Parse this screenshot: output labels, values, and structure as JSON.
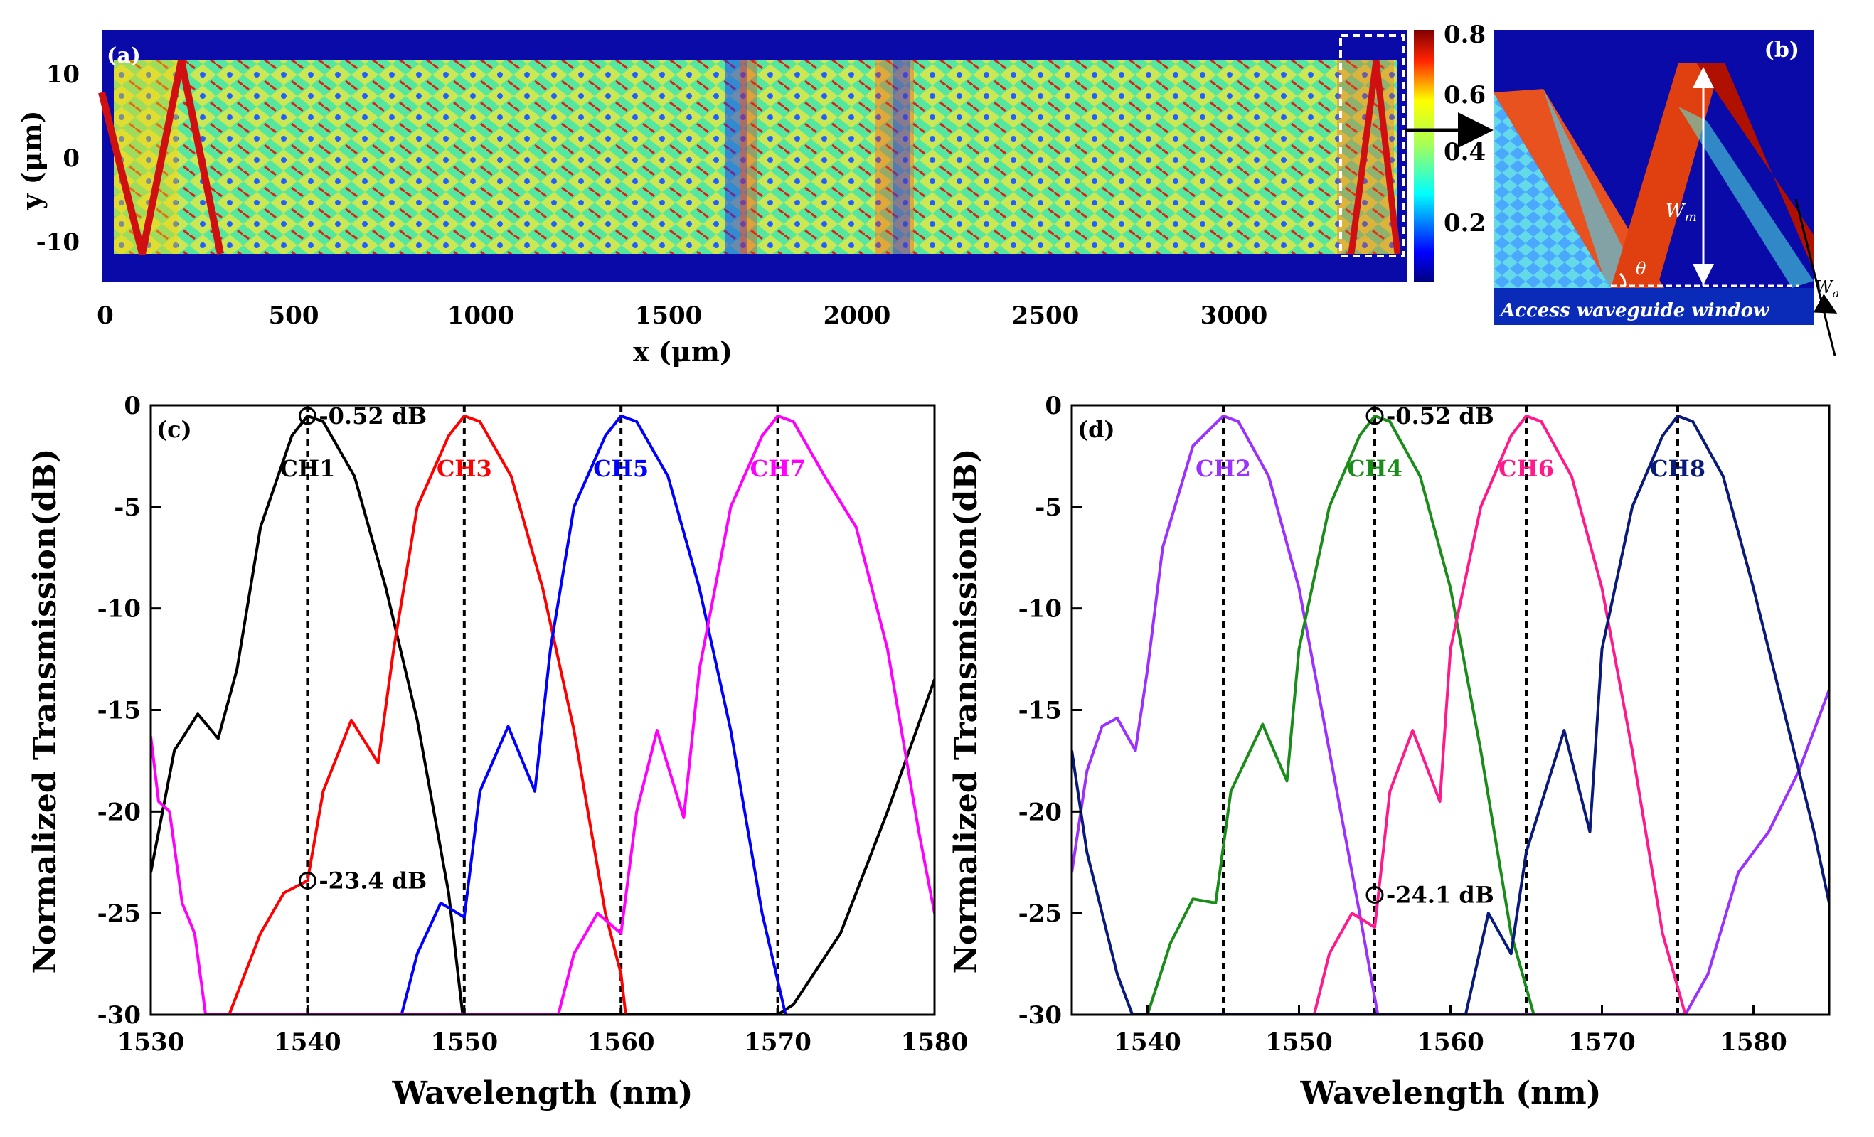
{
  "panel_a": {
    "label": "(a)",
    "xlabel": "x (μm)",
    "ylabel": "y (μm)",
    "xticks": [
      "0",
      "500",
      "1000",
      "1500",
      "2000",
      "2500",
      "3000"
    ],
    "yticks": [
      "10",
      "0",
      "-10"
    ],
    "colorbar_ticks": [
      "0.8",
      "0.6",
      "0.4",
      "0.2"
    ]
  },
  "panel_b": {
    "label": "(b)",
    "wm_label": "W",
    "wm_sub": "m",
    "wa_label": "W",
    "wa_sub": "a",
    "theta_label": "θ",
    "window_label": "Access waveguide window"
  },
  "colors": {
    "ch1": "#000000",
    "ch3": "#ff0000",
    "ch5": "#0000ff",
    "ch7": "#ff00ff",
    "ch2": "#9b30ff",
    "ch4": "#1a8c1a",
    "ch6": "#ff1a8c",
    "ch8": "#0a1a7a"
  },
  "chart_data": [
    {
      "type": "line",
      "panel": "(c)",
      "xlabel": "Wavelength (nm)",
      "ylabel": "Normalized Transmission(dB)",
      "xlim": [
        1530,
        1580
      ],
      "ylim": [
        -30,
        0
      ],
      "xticks": [
        "1530",
        "1540",
        "1550",
        "1560",
        "1570",
        "1580"
      ],
      "yticks": [
        "0",
        "-5",
        "-10",
        "-15",
        "-20",
        "-25",
        "-30"
      ],
      "series": [
        {
          "name": "CH1",
          "color": "#000000",
          "center": 1540,
          "x": [
            1530,
            1531.5,
            1533,
            1534.3,
            1535.5,
            1537,
            1539,
            1540,
            1541,
            1543,
            1545,
            1547,
            1549,
            1549.9,
            1558,
            1562,
            1566,
            1568,
            1570,
            1571,
            1574,
            1577,
            1580
          ],
          "y": [
            -23,
            -17,
            -15.2,
            -16.4,
            -13,
            -6,
            -1.5,
            -0.52,
            -0.8,
            -3.5,
            -9,
            -15.5,
            -24,
            -30,
            -30,
            -30,
            -30,
            -30,
            -30,
            -29.5,
            -26,
            -20,
            -13.5
          ]
        },
        {
          "name": "CH3",
          "color": "#ff0000",
          "center": 1550,
          "x": [
            1535,
            1537,
            1538.5,
            1540,
            1541,
            1542.8,
            1544.5,
            1545.5,
            1547,
            1549,
            1550,
            1551,
            1553,
            1555,
            1557,
            1559,
            1560,
            1560.3
          ],
          "y": [
            -30,
            -26,
            -24,
            -23.4,
            -19,
            -15.5,
            -17.6,
            -12,
            -5,
            -1.5,
            -0.52,
            -0.8,
            -3.5,
            -9,
            -16,
            -25,
            -28,
            -30
          ]
        },
        {
          "name": "CH5",
          "color": "#0000ff",
          "center": 1560,
          "x": [
            1546,
            1547,
            1548.5,
            1550,
            1551,
            1552.8,
            1554.5,
            1555.5,
            1557,
            1559,
            1560,
            1561,
            1563,
            1565,
            1567,
            1569,
            1570.5
          ],
          "y": [
            -30,
            -27,
            -24.5,
            -25.2,
            -19,
            -15.8,
            -19,
            -12,
            -5,
            -1.5,
            -0.52,
            -0.8,
            -3.5,
            -9,
            -16,
            -25,
            -30
          ]
        },
        {
          "name": "CH7",
          "color": "#ff00ff",
          "center": 1570,
          "x": [
            1530,
            1530.5,
            1531.2,
            1532,
            1532.8,
            1533.5,
            1556,
            1557,
            1558.5,
            1560,
            1561,
            1562.3,
            1564,
            1565,
            1567,
            1569,
            1570,
            1571,
            1573,
            1575,
            1577,
            1579,
            1580
          ],
          "y": [
            -16.3,
            -19.5,
            -20,
            -24.5,
            -26,
            -30,
            -30,
            -27,
            -25,
            -26,
            -20,
            -16,
            -20.3,
            -13,
            -5,
            -1.5,
            -0.52,
            -0.8,
            -3.5,
            -6,
            -12,
            -21,
            -25
          ]
        }
      ],
      "markers": [
        {
          "text": "-0.52 dB",
          "x": 1540,
          "y": -0.52
        },
        {
          "text": "-23.4 dB",
          "x": 1540,
          "y": -23.4
        }
      ],
      "vlines": [
        1540,
        1550,
        1560,
        1570
      ]
    },
    {
      "type": "line",
      "panel": "(d)",
      "xlabel": "Wavelength (nm)",
      "ylabel": "Normalized Transmission(dB)",
      "xlim": [
        1535,
        1585
      ],
      "ylim": [
        -30,
        0
      ],
      "xticks": [
        "1540",
        "1550",
        "1560",
        "1570",
        "1580"
      ],
      "yticks": [
        "0",
        "-5",
        "-10",
        "-15",
        "-20",
        "-25",
        "-30"
      ],
      "series": [
        {
          "name": "CH2",
          "color": "#9b30ff",
          "center": 1545,
          "x": [
            1535,
            1536,
            1537,
            1538,
            1539.2,
            1540,
            1541,
            1543,
            1545,
            1546,
            1548,
            1550,
            1552,
            1554,
            1555.2,
            1566,
            1572,
            1575.5,
            1577,
            1579,
            1581,
            1583,
            1585
          ],
          "y": [
            -23,
            -18,
            -15.8,
            -15.4,
            -17,
            -13,
            -7,
            -2,
            -0.52,
            -0.8,
            -3.5,
            -9,
            -17,
            -25,
            -30,
            -30,
            -30,
            -30,
            -28,
            -23,
            -21,
            -18,
            -14
          ]
        },
        {
          "name": "CH4",
          "color": "#1a8c1a",
          "center": 1555,
          "x": [
            1540,
            1541.5,
            1543,
            1544.5,
            1545.5,
            1547.6,
            1549.2,
            1550,
            1552,
            1554,
            1555,
            1556,
            1558,
            1560,
            1562,
            1564,
            1565.5
          ],
          "y": [
            -30,
            -26.5,
            -24.3,
            -24.5,
            -19,
            -15.7,
            -18.5,
            -12,
            -5,
            -1.5,
            -0.52,
            -0.8,
            -3.5,
            -9,
            -17,
            -26,
            -30
          ]
        },
        {
          "name": "CH6",
          "color": "#ff1a8c",
          "center": 1565,
          "x": [
            1551,
            1552,
            1553.5,
            1555,
            1556,
            1557.5,
            1559.3,
            1560,
            1562,
            1564,
            1565,
            1566,
            1568,
            1570,
            1572,
            1574,
            1575.5
          ],
          "y": [
            -30,
            -27,
            -25,
            -25.7,
            -19,
            -16,
            -19.5,
            -12,
            -5,
            -1.5,
            -0.52,
            -0.8,
            -3.5,
            -9,
            -17,
            -26,
            -30
          ]
        },
        {
          "name": "CH8",
          "color": "#0a1a7a",
          "center": 1575,
          "x": [
            1535,
            1536,
            1537,
            1538,
            1539,
            1561,
            1562.5,
            1564,
            1565,
            1567.5,
            1569.2,
            1570,
            1572,
            1574,
            1575,
            1576,
            1578,
            1580,
            1582,
            1584,
            1585
          ],
          "y": [
            -17,
            -22,
            -25,
            -28,
            -30,
            -30,
            -25,
            -27,
            -22,
            -16,
            -21,
            -12,
            -5,
            -1.5,
            -0.52,
            -0.8,
            -3.5,
            -9,
            -15,
            -21,
            -24.5
          ]
        }
      ],
      "markers": [
        {
          "text": "-0.52 dB",
          "x": 1555,
          "y": -0.52
        },
        {
          "text": "-24.1 dB",
          "x": 1555,
          "y": -24.1
        }
      ],
      "vlines": [
        1545,
        1555,
        1565,
        1575
      ]
    }
  ]
}
